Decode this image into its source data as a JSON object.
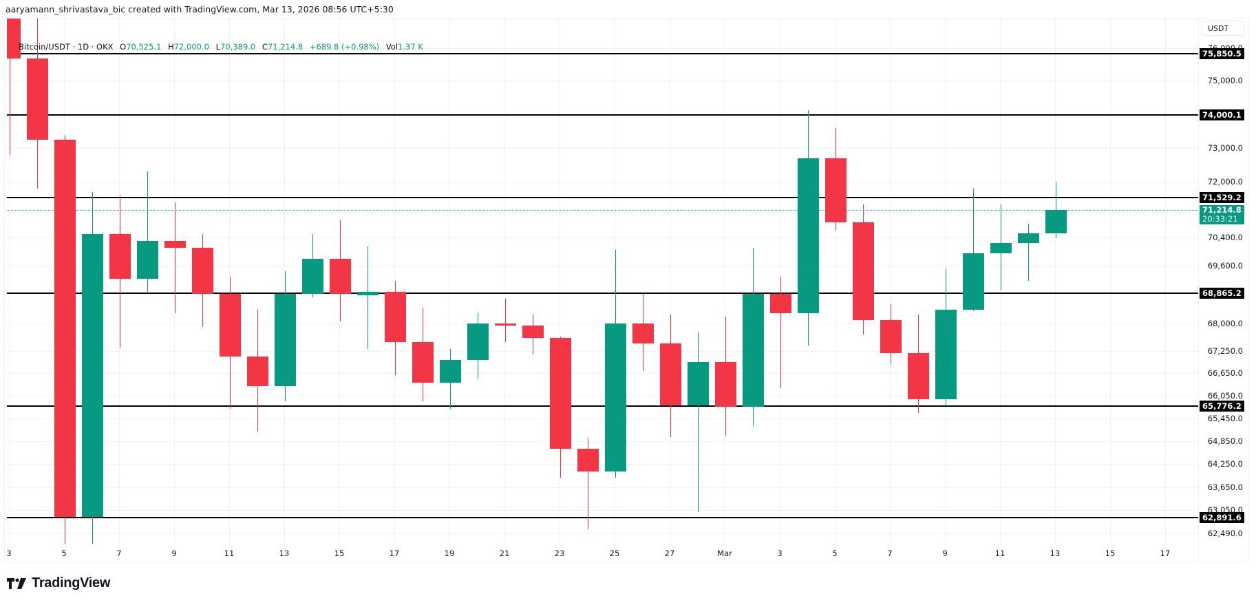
{
  "credit": "aaryamann_shrivastava_bic created with TradingView.com, Mar 13, 2026 08:56 UTC+5:30",
  "legend": {
    "symbol": "Bitcoin/USDT · 1D · OKX",
    "o_label": "O",
    "o_value": "70,525.1",
    "h_label": "H",
    "h_value": "72,000.0",
    "l_label": "L",
    "l_value": "70,389.0",
    "c_label": "C",
    "c_value": "71,214.8",
    "change": "+689.8 (+0.98%)",
    "vol_label": "Vol",
    "vol_value": "1.37 K"
  },
  "axis": {
    "currency": "USDT",
    "price_labels": [
      "76,000.0",
      "75,000.0",
      "73,000.0",
      "72,000.0",
      "70,400.0",
      "69,600.0",
      "68,000.0",
      "67,250.0",
      "66,650.0",
      "66,050.0",
      "65,450.0",
      "64,850.0",
      "64,250.0",
      "63,650.0",
      "63,050.0",
      "62,490.0"
    ],
    "level_tags": [
      "75,850.5",
      "74,000.1",
      "71,529.2",
      "68,865.2",
      "65,776.2",
      "62,891.6"
    ],
    "current_price": "71,214.8",
    "countdown": "20:33:21",
    "date_labels": [
      "3",
      "5",
      "7",
      "9",
      "11",
      "13",
      "15",
      "17",
      "19",
      "21",
      "23",
      "25",
      "27",
      "Mar",
      "3",
      "5",
      "7",
      "9",
      "11",
      "13",
      "15",
      "17"
    ]
  },
  "logo": {
    "text": "TradingView"
  },
  "colors": {
    "up": "#089981",
    "down": "#f23645",
    "level": "#000000",
    "grid": "#f2f2f4"
  },
  "chart_data": {
    "type": "candlestick",
    "title": "Bitcoin/USDT · 1D · OKX",
    "xlabel": "",
    "ylabel": "USDT",
    "ylim": [
      62300,
      76400
    ],
    "grid": true,
    "dates": [
      "Feb 3",
      "Feb 4",
      "Feb 5",
      "Feb 6",
      "Feb 7",
      "Feb 8",
      "Feb 9",
      "Feb 10",
      "Feb 11",
      "Feb 12",
      "Feb 13",
      "Feb 14",
      "Feb 15",
      "Feb 16",
      "Feb 17",
      "Feb 18",
      "Feb 19",
      "Feb 20",
      "Feb 21",
      "Feb 22",
      "Feb 23",
      "Feb 24",
      "Feb 25",
      "Feb 26",
      "Feb 27",
      "Feb 28",
      "Mar 1",
      "Mar 2",
      "Mar 3",
      "Mar 4",
      "Mar 5",
      "Mar 6",
      "Mar 7",
      "Mar 8",
      "Mar 9",
      "Mar 10",
      "Mar 11",
      "Mar 12",
      "Mar 13"
    ],
    "open": [
      77000,
      75700,
      73250,
      62900,
      70500,
      69250,
      70300,
      70100,
      68850,
      67100,
      66300,
      68850,
      69800,
      68800,
      68900,
      67500,
      66400,
      67000,
      68000,
      67950,
      67600,
      64650,
      64050,
      68000,
      67450,
      65800,
      66950,
      65750,
      68850,
      68300,
      72700,
      70850,
      68100,
      67200,
      65950,
      68400,
      69950,
      70250,
      70525.1
    ],
    "high": [
      78000,
      77000,
      73400,
      71700,
      71600,
      72300,
      71400,
      70500,
      69300,
      68400,
      69450,
      70500,
      70900,
      70150,
      69200,
      68450,
      67300,
      68300,
      68700,
      68250,
      67650,
      64950,
      70050,
      68850,
      68250,
      67750,
      68200,
      70100,
      69300,
      74150,
      73600,
      71350,
      68550,
      68250,
      69500,
      71800,
      71350,
      70800,
      72000.0
    ],
    "low": [
      72800,
      71800,
      62200,
      62150,
      67350,
      68900,
      68300,
      67900,
      65700,
      65100,
      65900,
      68750,
      68050,
      67300,
      66600,
      65900,
      65700,
      66500,
      67500,
      67150,
      63900,
      62600,
      63900,
      66700,
      64950,
      63000,
      65000,
      65250,
      66250,
      67400,
      70600,
      67700,
      66900,
      65600,
      65800,
      68350,
      68950,
      69200,
      70389.0
    ],
    "close": [
      75700,
      73250,
      62900,
      70500,
      69250,
      70300,
      70100,
      68850,
      67100,
      66300,
      68850,
      69800,
      68850,
      68900,
      67500,
      66400,
      67000,
      68000,
      67950,
      67600,
      64650,
      64050,
      68000,
      67450,
      65800,
      66950,
      65750,
      68850,
      68300,
      72700,
      70850,
      68100,
      67200,
      65950,
      68400,
      69950,
      70250,
      70525,
      71214.8
    ],
    "horizontal_levels": [
      75850.5,
      74000.1,
      71529.2,
      68865.2,
      65776.2,
      62891.6
    ],
    "last_price": 71214.8,
    "last_change": "+689.8 (+0.98%)",
    "volume_last": "1.37 K",
    "y_tick_labels": [
      "76,000.0",
      "75,000.0",
      "73,000.0",
      "72,000.0",
      "70,400.0",
      "69,600.0",
      "68,000.0",
      "67,250.0",
      "66,650.0",
      "66,050.0",
      "65,450.0",
      "64,850.0",
      "64,250.0",
      "63,650.0",
      "63,050.0",
      "62,490.0"
    ],
    "x_tick_labels": [
      "3",
      "5",
      "7",
      "9",
      "11",
      "13",
      "15",
      "17",
      "19",
      "21",
      "23",
      "25",
      "27",
      "Mar",
      "3",
      "5",
      "7",
      "9",
      "11",
      "13",
      "15",
      "17"
    ]
  }
}
